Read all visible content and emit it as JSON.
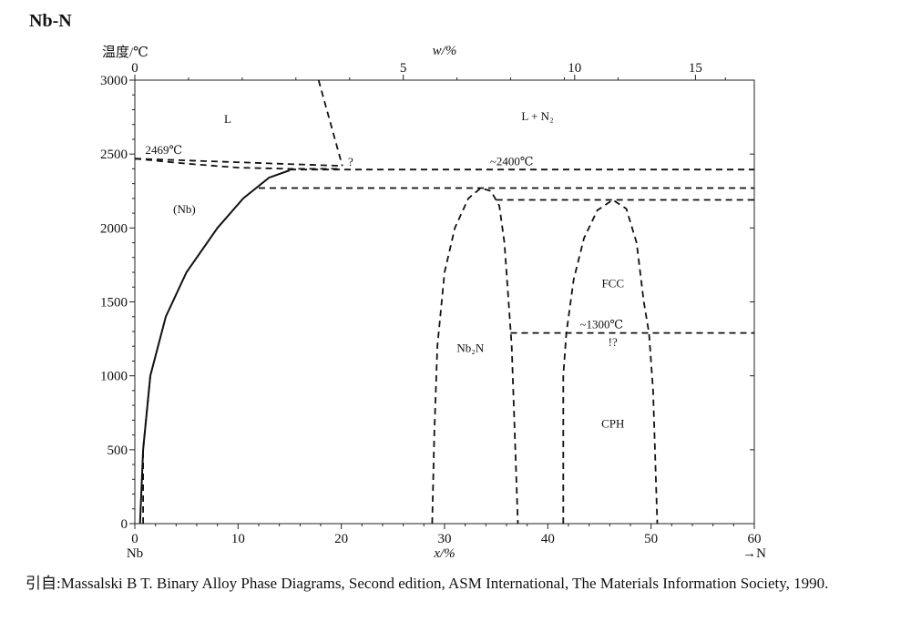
{
  "title": "Nb-N",
  "citation": "引自:Massalski B T. Binary Alloy Phase Diagrams, Second edition, ASM International, The Materials Information Society, 1990.",
  "chart_data": {
    "type": "phase-diagram",
    "ylabel": "温度/℃",
    "xlabel_bottom": "x/%",
    "xlabel_top": "w/%",
    "x_end_label_left": "Nb",
    "x_end_label_right": "→N",
    "xlim": [
      0,
      60
    ],
    "ylim": [
      0,
      3000
    ],
    "x_ticks": [
      0,
      10,
      20,
      30,
      40,
      50,
      60
    ],
    "x_tick_labels": [
      "0",
      "10",
      "20",
      "30",
      "40",
      "50",
      "60"
    ],
    "y_ticks": [
      0,
      500,
      1000,
      1500,
      2000,
      2500,
      3000
    ],
    "y_tick_labels": [
      "0",
      "500",
      "1000",
      "1500",
      "2000",
      "2500",
      "3000"
    ],
    "top_ticks_at_x_at": [
      0,
      26,
      42.6,
      54.3
    ],
    "top_tick_labels": [
      "0",
      "5",
      "10",
      "15"
    ],
    "annotations": [
      {
        "text": "L",
        "x": 9,
        "y": 2710
      },
      {
        "text": "L + N₂",
        "x": 39,
        "y": 2730
      },
      {
        "text": "2469℃",
        "x": 2.8,
        "y": 2500
      },
      {
        "text": "?",
        "x": 20.9,
        "y": 2420
      },
      {
        "text": "~2400℃",
        "x": 36.5,
        "y": 2425
      },
      {
        "text": "(Nb)",
        "x": 4.8,
        "y": 2100
      },
      {
        "text": "FCC",
        "x": 46.3,
        "y": 1600
      },
      {
        "text": "~1300℃",
        "x": 45.2,
        "y": 1320
      },
      {
        "text": "!?",
        "x": 46.3,
        "y": 1200
      },
      {
        "text": "Nb₂N",
        "x": 32.5,
        "y": 1160
      },
      {
        "text": "CPH",
        "x": 46.3,
        "y": 650
      }
    ],
    "lines": [
      {
        "name": "liquidus-upper",
        "style": "dashed",
        "points": [
          [
            17.8,
            3000
          ],
          [
            20.1,
            2420
          ]
        ]
      },
      {
        "name": "liquidus-lower",
        "style": "dashed",
        "points": [
          [
            0,
            2469
          ],
          [
            5,
            2435
          ],
          [
            10,
            2408
          ],
          [
            15,
            2400
          ],
          [
            20,
            2400
          ]
        ]
      },
      {
        "name": "liquidus-from-melting-point",
        "style": "dashed",
        "points": [
          [
            0,
            2469
          ],
          [
            20.1,
            2420
          ]
        ]
      },
      {
        "name": "solvus-Nb",
        "style": "solid",
        "points": [
          [
            0.5,
            0
          ],
          [
            0.8,
            500
          ],
          [
            1.5,
            1000
          ],
          [
            3,
            1400
          ],
          [
            5,
            1700
          ],
          [
            8,
            2000
          ],
          [
            10.5,
            2200
          ],
          [
            13,
            2340
          ],
          [
            15,
            2390
          ]
        ]
      },
      {
        "name": "solvus-Nb-lower",
        "style": "dashed",
        "points": [
          [
            0.8,
            0
          ],
          [
            0.8,
            500
          ],
          [
            1.5,
            1000
          ]
        ]
      },
      {
        "name": "isotherm-2400",
        "style": "dashed",
        "points": [
          [
            15,
            2395
          ],
          [
            60,
            2395
          ]
        ]
      },
      {
        "name": "isotherm-2270",
        "style": "dashed",
        "points": [
          [
            12,
            2270
          ],
          [
            60,
            2270
          ]
        ]
      },
      {
        "name": "isotherm-2190",
        "style": "dashed",
        "points": [
          [
            35,
            2190
          ],
          [
            60,
            2190
          ]
        ]
      },
      {
        "name": "isotherm-1300",
        "style": "dashed",
        "points": [
          [
            36.4,
            1290
          ],
          [
            60,
            1290
          ]
        ]
      },
      {
        "name": "Nb2N-dome",
        "style": "dashed",
        "points": [
          [
            28.8,
            0
          ],
          [
            29,
            600
          ],
          [
            29.3,
            1200
          ],
          [
            30,
            1700
          ],
          [
            31,
            2000
          ],
          [
            32.3,
            2200
          ],
          [
            33.5,
            2270
          ],
          [
            34.5,
            2250
          ],
          [
            35.3,
            2150
          ],
          [
            35.8,
            1900
          ],
          [
            36.2,
            1500
          ],
          [
            36.5,
            1200
          ],
          [
            36.8,
            600
          ],
          [
            37.1,
            0
          ]
        ]
      },
      {
        "name": "FCC-dome",
        "style": "dashed",
        "points": [
          [
            41.5,
            0
          ],
          [
            41.5,
            1000
          ],
          [
            41.8,
            1290
          ],
          [
            42.5,
            1650
          ],
          [
            43.5,
            1930
          ],
          [
            44.8,
            2120
          ],
          [
            46.3,
            2190
          ],
          [
            47.6,
            2130
          ],
          [
            48.6,
            1900
          ],
          [
            49.3,
            1500
          ],
          [
            49.8,
            1290
          ],
          [
            50.2,
            900
          ],
          [
            50.6,
            0
          ]
        ]
      }
    ]
  }
}
